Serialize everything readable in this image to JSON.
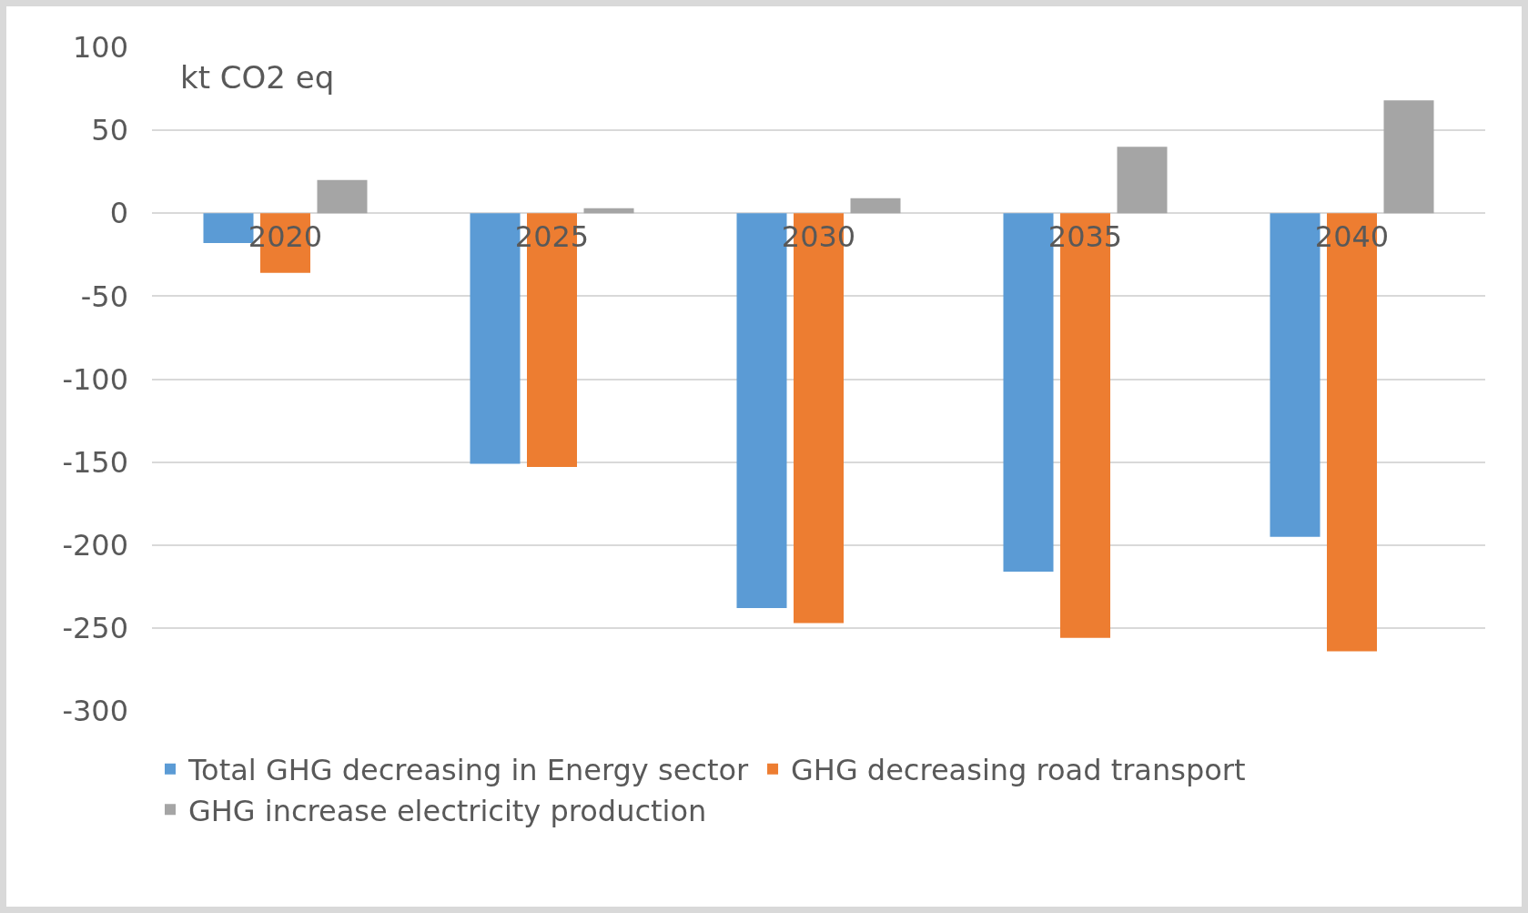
{
  "chart_data": {
    "type": "bar",
    "ylabel": "kt CO2 eq",
    "categories": [
      "2020",
      "2025",
      "2030",
      "2035",
      "2040"
    ],
    "series": [
      {
        "name": "Total GHG decreasing in Energy sector",
        "color": "#5b9bd5",
        "values": [
          -18,
          -151,
          -238,
          -216,
          -195
        ]
      },
      {
        "name": "GHG decreasing road transport",
        "color": "#ed7d31",
        "values": [
          -36,
          -153,
          -247,
          -256,
          -264
        ]
      },
      {
        "name": "GHG increase electricity production",
        "color": "#a5a5a5",
        "values": [
          20,
          3,
          9,
          40,
          68
        ]
      }
    ],
    "ylim": [
      -300,
      100
    ],
    "yticks": [
      -300,
      -250,
      -200,
      -150,
      -100,
      -50,
      0,
      50,
      100
    ],
    "grid": "y",
    "legend": "bottom"
  }
}
